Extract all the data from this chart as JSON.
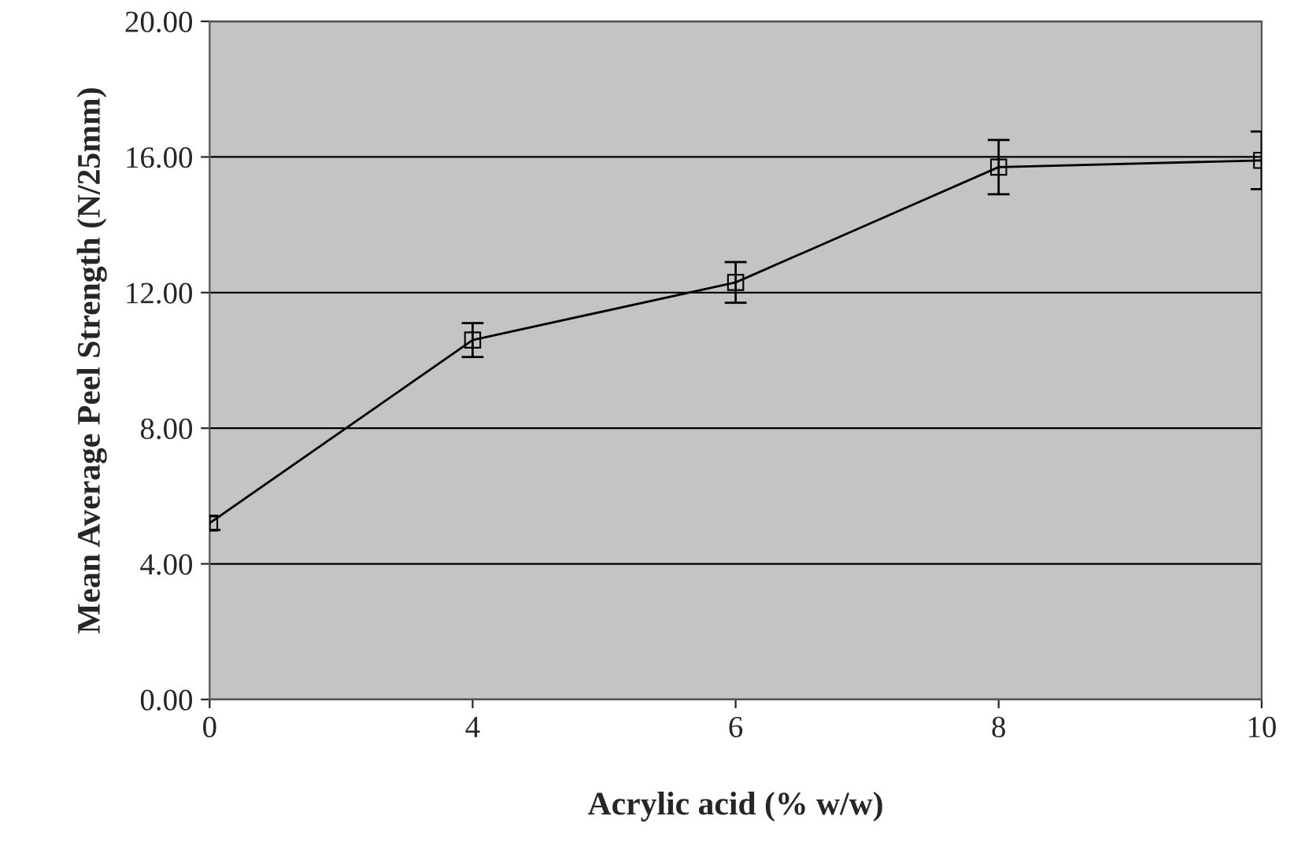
{
  "chart_data": {
    "type": "line",
    "xlabel": "Acrylic acid (% w/w)",
    "ylabel": "Mean Average Peel Strength (N/25mm)",
    "categories": [
      "0",
      "4",
      "6",
      "8",
      "10"
    ],
    "series": [
      {
        "color": "#000000",
        "values": [
          5.2,
          10.6,
          12.3,
          15.7,
          15.9
        ],
        "errors": [
          0.2,
          0.5,
          0.6,
          0.8,
          0.85
        ]
      }
    ],
    "ylim": [
      0,
      20
    ],
    "yticks": [
      {
        "value": 0,
        "label": "0.00"
      },
      {
        "value": 4,
        "label": "4.00"
      },
      {
        "value": 8,
        "label": "8.00"
      },
      {
        "value": 12,
        "label": "12.00"
      },
      {
        "value": 16,
        "label": "16.00"
      },
      {
        "value": 20,
        "label": "20.00"
      }
    ],
    "grid": "y",
    "marker": "square",
    "line_style": "solid",
    "legend": false
  }
}
